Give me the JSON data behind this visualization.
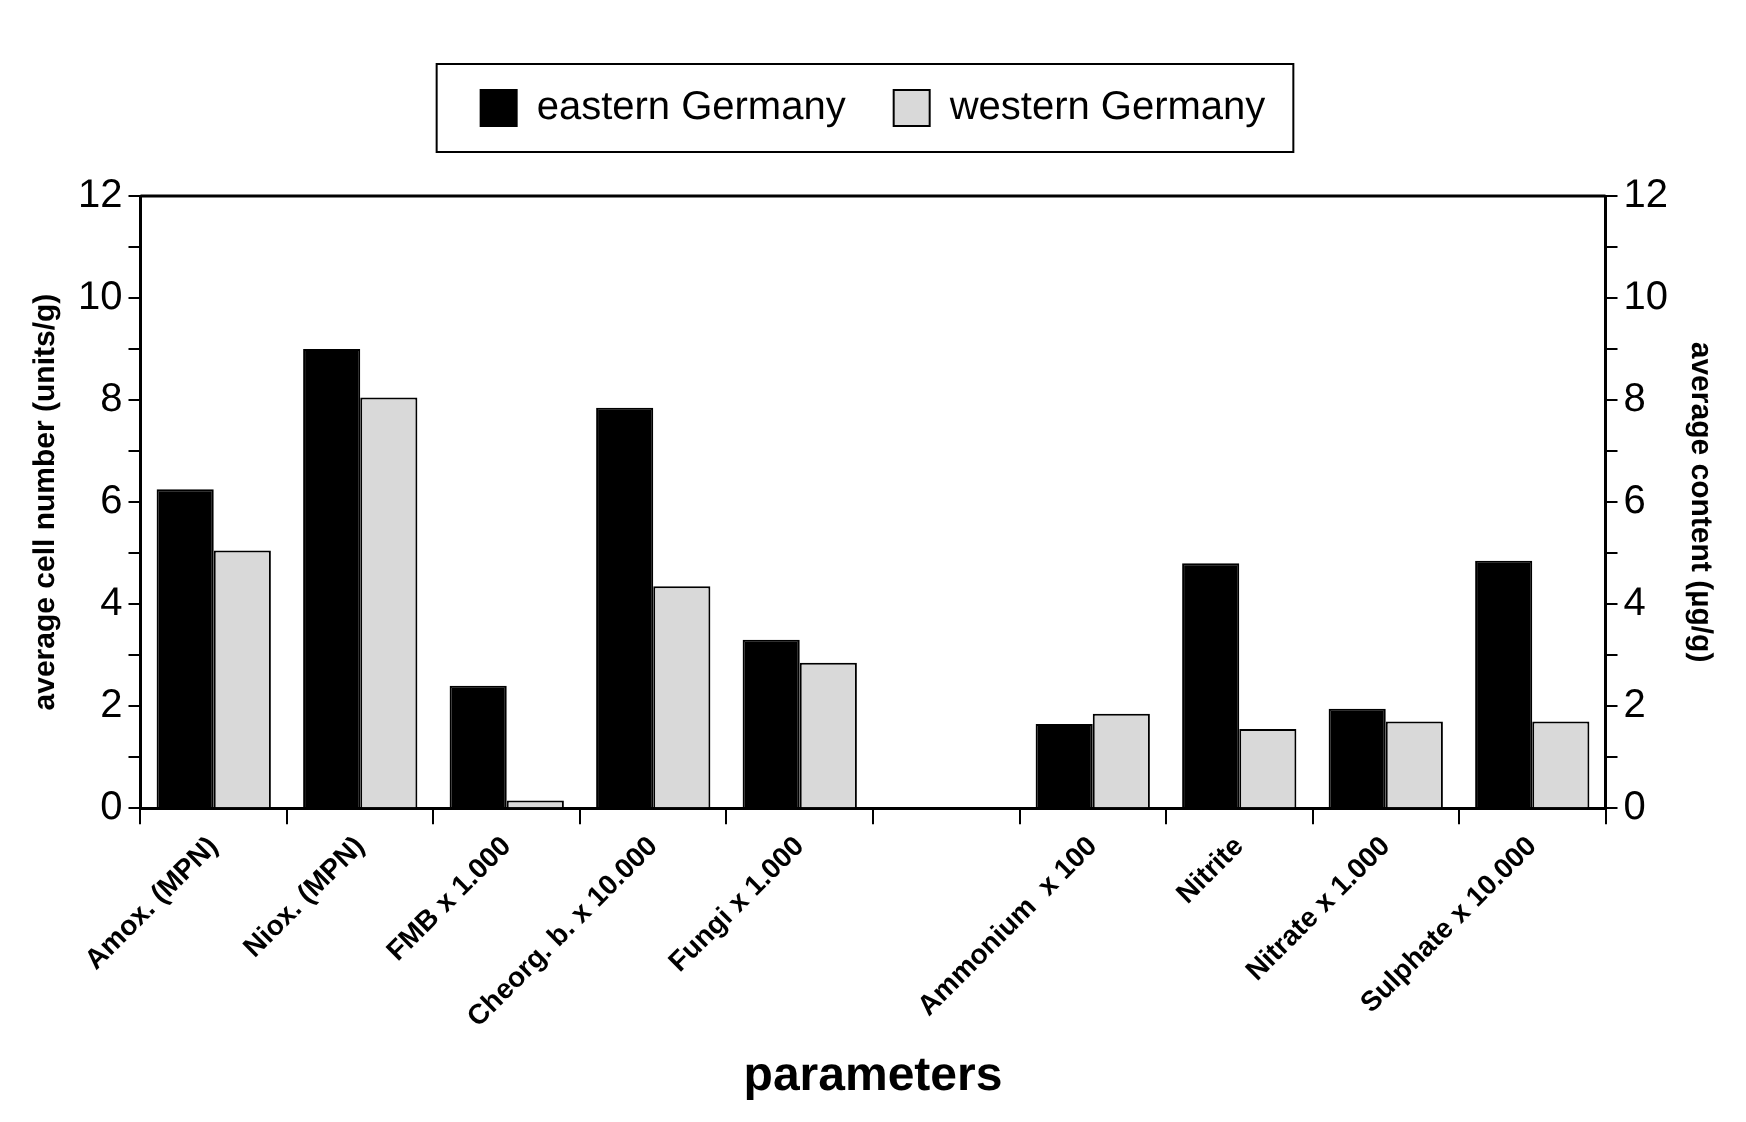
{
  "chart_data": {
    "type": "bar",
    "xlabel": "parameters",
    "ylabel": "average cell number (units/g)",
    "y2label": "average content (µg/g)",
    "categories": [
      "Amox. (MPN)",
      "Niox. (MPN)",
      "FMB x 1.000",
      "Cheorg. b. x 10.000",
      "Fungi x 1.000",
      null,
      "Ammonium  x 100",
      "Nitrite",
      "Nitrate x 1.000",
      "Sulphate x 10.000"
    ],
    "series": [
      {
        "name": "eastern Germany",
        "color": "#000000",
        "values": [
          6.25,
          9.0,
          2.4,
          7.85,
          3.3,
          null,
          1.65,
          4.8,
          1.95,
          4.85
        ]
      },
      {
        "name": "western Germany",
        "color": "#d9d9d9",
        "values": [
          5.05,
          8.05,
          0.15,
          4.35,
          2.85,
          null,
          1.85,
          1.55,
          1.7,
          1.7
        ]
      }
    ],
    "ylim": [
      0,
      12
    ],
    "yticks": [
      0,
      {
        "value": 1,
        "label": null
      },
      2,
      {
        "value": 3,
        "label": null
      },
      4,
      {
        "value": 5,
        "label": null
      },
      6,
      {
        "value": 7,
        "label": null
      },
      8,
      {
        "value": 9,
        "label": null
      },
      10,
      {
        "value": 11,
        "label": null
      },
      12
    ],
    "y2lim": [
      0,
      12
    ],
    "y2ticks": [
      0,
      {
        "value": 1,
        "label": null
      },
      2,
      {
        "value": 3,
        "label": null
      },
      4,
      {
        "value": 5,
        "label": null
      },
      6,
      {
        "value": 7,
        "label": null
      },
      8,
      {
        "value": 9,
        "label": null
      },
      10,
      {
        "value": 11,
        "label": null
      },
      12
    ],
    "legend": "top"
  }
}
